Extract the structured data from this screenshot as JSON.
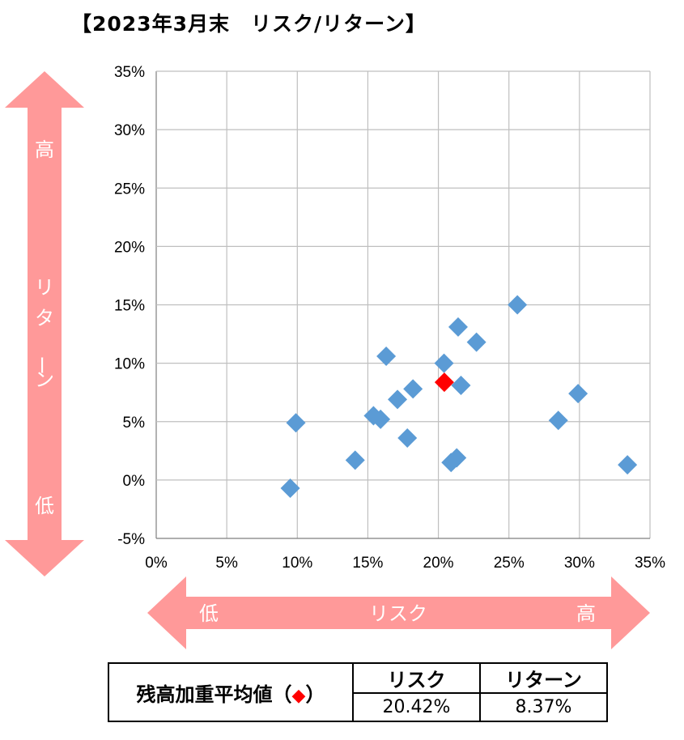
{
  "title": "【2023年3月末　リスク/リターン】",
  "chart_data": {
    "type": "scatter",
    "title": "【2023年3月末　リスク/リターン】",
    "xlim": [
      0,
      35
    ],
    "ylim": [
      -5,
      35
    ],
    "x_ticks": [
      "0%",
      "5%",
      "10%",
      "15%",
      "20%",
      "25%",
      "30%",
      "35%"
    ],
    "y_ticks": [
      "35%",
      "30%",
      "25%",
      "20%",
      "15%",
      "10%",
      "5%",
      "0%",
      "-5%"
    ],
    "grid": true,
    "series": [
      {
        "color": "#5b9bd5",
        "marker": "diamond",
        "points": [
          {
            "x": 9.5,
            "y": -0.7
          },
          {
            "x": 9.9,
            "y": 4.9
          },
          {
            "x": 14.1,
            "y": 1.7
          },
          {
            "x": 15.4,
            "y": 5.5
          },
          {
            "x": 15.9,
            "y": 5.2
          },
          {
            "x": 16.3,
            "y": 10.6
          },
          {
            "x": 17.1,
            "y": 6.9
          },
          {
            "x": 17.8,
            "y": 3.6
          },
          {
            "x": 18.2,
            "y": 7.8
          },
          {
            "x": 20.4,
            "y": 10.0
          },
          {
            "x": 20.9,
            "y": 1.5
          },
          {
            "x": 21.3,
            "y": 1.9
          },
          {
            "x": 21.4,
            "y": 13.1
          },
          {
            "x": 21.6,
            "y": 8.1
          },
          {
            "x": 22.7,
            "y": 11.8
          },
          {
            "x": 25.6,
            "y": 15.0
          },
          {
            "x": 28.5,
            "y": 5.1
          },
          {
            "x": 29.9,
            "y": 7.4
          },
          {
            "x": 33.4,
            "y": 1.3
          }
        ]
      },
      {
        "color": "#ff0000",
        "marker": "diamond",
        "points": [
          {
            "x": 20.42,
            "y": 8.37
          }
        ]
      }
    ]
  },
  "y_arrow": {
    "high": "高",
    "label": "リターン",
    "low": "低",
    "color": "#ff9999"
  },
  "x_arrow": {
    "low": "低",
    "label": "リスク",
    "high": "高",
    "color": "#ff9999"
  },
  "summary": {
    "label": "残高加重平均値（",
    "label_marker": "◆",
    "label_end": "）",
    "col_risk": "リスク",
    "col_return": "リターン",
    "risk_value": "20.42%",
    "return_value": "8.37%"
  }
}
